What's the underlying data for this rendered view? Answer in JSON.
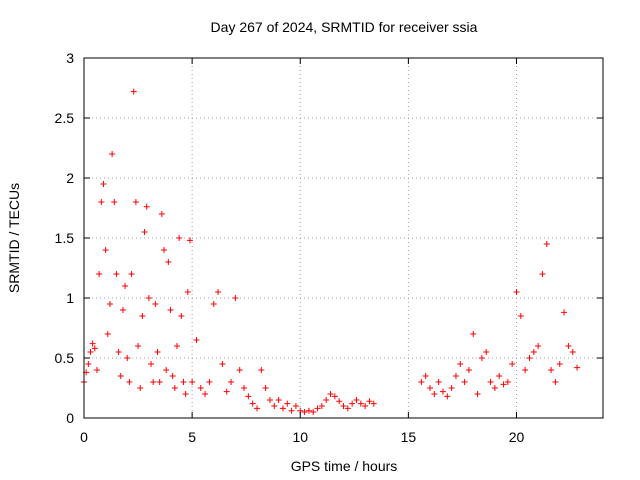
{
  "chart_data": {
    "type": "scatter",
    "title": "Day 267 of 2024, SRMTID for receiver ssia",
    "xlabel": "GPS time / hours",
    "ylabel": "SRMTID / TECUs",
    "xlim": [
      0,
      24
    ],
    "ylim": [
      0,
      3
    ],
    "grid": true,
    "marker": "+",
    "color": "#ff0000",
    "xticks": [
      0,
      5,
      10,
      15,
      20
    ],
    "xtick_labels": [
      "0",
      "5",
      "10",
      "15",
      "20"
    ],
    "yticks": [
      0,
      0.5,
      1,
      1.5,
      2,
      2.5,
      3
    ],
    "ytick_labels": [
      "0",
      "0.5",
      "1",
      "1.5",
      "2",
      "2.5",
      "3"
    ],
    "series": [
      {
        "name": "SRMTID",
        "x": [
          0.0,
          0.1,
          0.2,
          0.3,
          0.4,
          0.5,
          0.6,
          0.7,
          0.8,
          0.9,
          1.0,
          1.1,
          1.2,
          1.3,
          1.4,
          1.5,
          1.6,
          1.7,
          1.8,
          1.9,
          2.0,
          2.1,
          2.2,
          2.3,
          2.4,
          2.5,
          2.6,
          2.7,
          2.8,
          2.9,
          3.0,
          3.1,
          3.2,
          3.3,
          3.4,
          3.5,
          3.6,
          3.7,
          3.8,
          3.9,
          4.0,
          4.1,
          4.2,
          4.3,
          4.4,
          4.5,
          4.6,
          4.7,
          4.8,
          4.9,
          5.0,
          5.2,
          5.4,
          5.6,
          5.8,
          6.0,
          6.2,
          6.4,
          6.6,
          6.8,
          7.0,
          7.2,
          7.4,
          7.6,
          7.8,
          8.0,
          8.2,
          8.4,
          8.6,
          8.8,
          9.0,
          9.2,
          9.4,
          9.6,
          9.8,
          10.0,
          10.2,
          10.4,
          10.6,
          10.8,
          11.0,
          11.2,
          11.4,
          11.6,
          11.8,
          12.0,
          12.2,
          12.4,
          12.6,
          12.8,
          13.0,
          13.2,
          13.4,
          15.6,
          15.8,
          16.0,
          16.2,
          16.4,
          16.6,
          16.8,
          17.0,
          17.2,
          17.4,
          17.6,
          17.8,
          18.0,
          18.2,
          18.4,
          18.6,
          18.8,
          19.0,
          19.2,
          19.4,
          19.6,
          19.8,
          20.0,
          20.2,
          20.4,
          20.6,
          20.8,
          21.0,
          21.2,
          21.4,
          21.6,
          21.8,
          22.0,
          22.2,
          22.4,
          22.6,
          22.8
        ],
        "y": [
          0.3,
          0.38,
          0.45,
          0.55,
          0.62,
          0.58,
          0.4,
          1.2,
          1.8,
          1.95,
          1.4,
          0.7,
          0.95,
          2.2,
          1.8,
          1.2,
          0.55,
          0.35,
          0.9,
          1.1,
          0.5,
          0.3,
          1.2,
          2.72,
          1.8,
          0.6,
          0.25,
          0.85,
          1.55,
          1.76,
          1.0,
          0.45,
          0.3,
          0.95,
          0.55,
          0.3,
          1.7,
          1.4,
          0.4,
          1.3,
          0.9,
          0.35,
          0.25,
          0.6,
          1.5,
          0.85,
          0.3,
          0.2,
          1.05,
          1.48,
          0.3,
          0.65,
          0.25,
          0.2,
          0.3,
          0.95,
          1.05,
          0.45,
          0.22,
          0.3,
          1.0,
          0.4,
          0.25,
          0.18,
          0.12,
          0.08,
          0.4,
          0.25,
          0.15,
          0.1,
          0.15,
          0.08,
          0.12,
          0.06,
          0.1,
          0.06,
          0.05,
          0.06,
          0.05,
          0.08,
          0.1,
          0.15,
          0.2,
          0.18,
          0.14,
          0.1,
          0.08,
          0.12,
          0.15,
          0.12,
          0.1,
          0.14,
          0.12,
          0.3,
          0.35,
          0.25,
          0.2,
          0.3,
          0.22,
          0.18,
          0.25,
          0.35,
          0.45,
          0.3,
          0.4,
          0.7,
          0.2,
          0.5,
          0.55,
          0.3,
          0.25,
          0.35,
          0.28,
          0.3,
          0.45,
          1.05,
          0.85,
          0.4,
          0.5,
          0.55,
          0.6,
          1.2,
          1.45,
          0.4,
          0.3,
          0.45,
          0.88,
          0.6,
          0.55,
          0.42
        ]
      }
    ]
  }
}
